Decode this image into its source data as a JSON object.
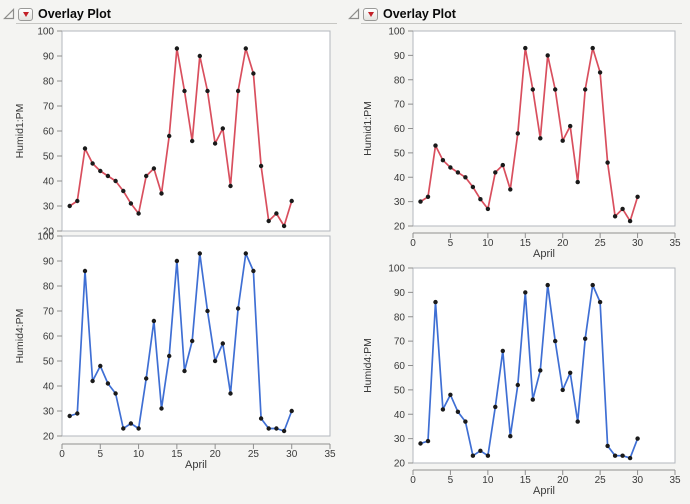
{
  "panels": [
    {
      "title": "Overlay Plot",
      "charts": [
        {
          "series": 0,
          "show_x_axis": false
        },
        {
          "series": 1,
          "show_x_axis": true
        }
      ]
    },
    {
      "title": "Overlay Plot",
      "charts": [
        {
          "series": 0,
          "show_x_axis": true
        },
        {
          "series": 1,
          "show_x_axis": true
        }
      ]
    }
  ],
  "chart_data": [
    {
      "type": "line",
      "name": "Humid1:PM",
      "title": "",
      "xlabel": "April",
      "ylabel": "Humid1:PM",
      "xlim": [
        0,
        35
      ],
      "ylim": [
        20,
        100
      ],
      "x_ticks": [
        0,
        5,
        10,
        15,
        20,
        25,
        30,
        35
      ],
      "y_ticks": [
        20,
        30,
        40,
        50,
        60,
        70,
        80,
        90,
        100
      ],
      "line_color": "#d94f5e",
      "marker_color": "#1a1a1a",
      "x": [
        1,
        2,
        3,
        4,
        5,
        6,
        7,
        8,
        9,
        10,
        11,
        12,
        13,
        14,
        15,
        16,
        17,
        18,
        19,
        20,
        21,
        22,
        23,
        24,
        25,
        26,
        27,
        28,
        29,
        30
      ],
      "y": [
        30,
        32,
        53,
        47,
        44,
        42,
        40,
        36,
        31,
        27,
        42,
        45,
        35,
        58,
        93,
        76,
        56,
        90,
        76,
        55,
        61,
        38,
        76,
        93,
        83,
        46,
        24,
        27,
        22,
        32
      ]
    },
    {
      "type": "line",
      "name": "Humid4:PM",
      "title": "",
      "xlabel": "April",
      "ylabel": "Humid4:PM",
      "xlim": [
        0,
        35
      ],
      "ylim": [
        20,
        100
      ],
      "x_ticks": [
        0,
        5,
        10,
        15,
        20,
        25,
        30,
        35
      ],
      "y_ticks": [
        20,
        30,
        40,
        50,
        60,
        70,
        80,
        90,
        100
      ],
      "line_color": "#3f6fd4",
      "marker_color": "#1a1a1a",
      "x": [
        1,
        2,
        3,
        4,
        5,
        6,
        7,
        8,
        9,
        10,
        11,
        12,
        13,
        14,
        15,
        16,
        17,
        18,
        19,
        20,
        21,
        22,
        23,
        24,
        25,
        26,
        27,
        28,
        29,
        30
      ],
      "y": [
        28,
        29,
        86,
        42,
        48,
        41,
        37,
        23,
        25,
        23,
        43,
        66,
        31,
        52,
        90,
        46,
        58,
        93,
        70,
        50,
        57,
        37,
        71,
        93,
        86,
        27,
        23,
        23,
        22,
        30
      ]
    }
  ],
  "icons": {
    "disclosure": "open-disclosure-triangle",
    "menu": "red-triangle-menu"
  },
  "colors": {
    "background": "#f4f4f2",
    "plot_background": "#ffffff",
    "frame_border": "#b3b7bd",
    "axis": "#8f8f8f",
    "tick_text": "#3a3a3a",
    "menu_triangle_red": "#c32027"
  }
}
